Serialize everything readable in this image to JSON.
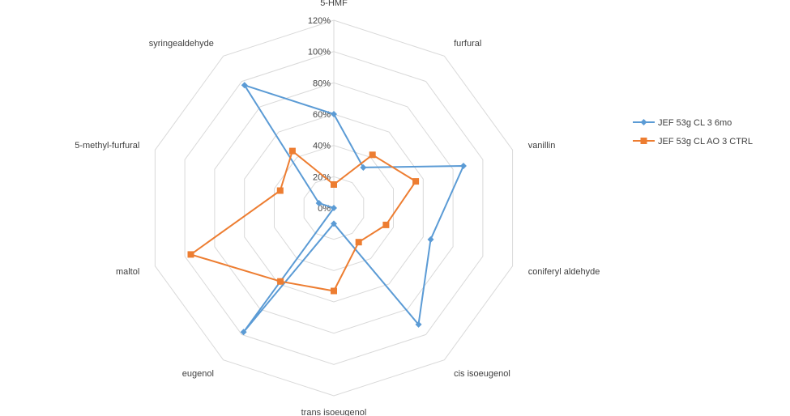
{
  "chart_data": {
    "type": "radar",
    "categories": [
      "5-HMF",
      "furfural",
      "vanillin",
      "coniferyl aldehyde",
      "cis isoeugenol",
      "trans isoeugenol",
      "eugenol",
      "maltol",
      "5-methyl-furfural",
      "syringealdehyde"
    ],
    "tick_labels": [
      "0%",
      "20%",
      "40%",
      "60%",
      "80%",
      "100%",
      "120%"
    ],
    "rmax": 1.2,
    "grid": true,
    "legend_position": "right",
    "series": [
      {
        "name": "JEF 53g CL 3 6mo",
        "color": "#5B9BD5",
        "marker": "diamond",
        "values": [
          0.6,
          0.32,
          0.87,
          0.65,
          0.92,
          0.1,
          0.98,
          0.0,
          0.1,
          0.97
        ]
      },
      {
        "name": "JEF 53g CL AO 3 CTRL",
        "color": "#ED7D31",
        "marker": "square",
        "values": [
          0.15,
          0.42,
          0.55,
          0.35,
          0.27,
          0.53,
          0.58,
          0.96,
          0.36,
          0.45
        ]
      }
    ]
  }
}
